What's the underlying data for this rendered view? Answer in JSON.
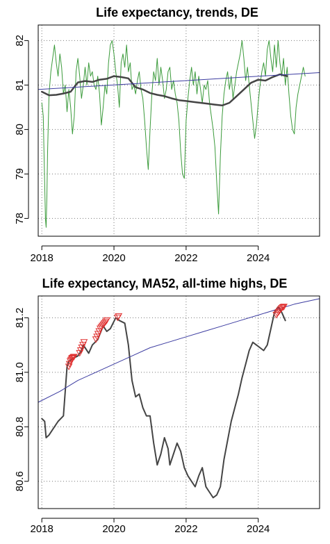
{
  "chart_data": [
    {
      "type": "line",
      "title": "Life expectancy, trends, DE",
      "xlabel": "",
      "ylabel": "",
      "xlim": [
        2017.9,
        2025.7
      ],
      "ylim": [
        77.6,
        82.35
      ],
      "xticks": [
        2018,
        2020,
        2022,
        2024
      ],
      "xtick_labels": [
        "2018",
        "2020",
        "2022",
        "2024"
      ],
      "yticks": [
        78,
        79,
        80,
        81,
        82
      ],
      "ytick_labels": [
        "78",
        "79",
        "80",
        "81",
        "82"
      ],
      "grid": true,
      "colors": {
        "weekly": "#3a9a3a",
        "ma52": "#444444",
        "trend": "#3b3ba0"
      },
      "series": [
        {
          "key": "weekly",
          "x": [
            2018.0,
            2018.04,
            2018.06,
            2018.08,
            2018.1,
            2018.12,
            2018.14,
            2018.16,
            2018.2,
            2018.25,
            2018.3,
            2018.35,
            2018.4,
            2018.45,
            2018.5,
            2018.55,
            2018.6,
            2018.65,
            2018.7,
            2018.75,
            2018.8,
            2018.85,
            2018.9,
            2018.95,
            2019.0,
            2019.05,
            2019.1,
            2019.15,
            2019.2,
            2019.25,
            2019.3,
            2019.35,
            2019.4,
            2019.45,
            2019.5,
            2019.55,
            2019.6,
            2019.65,
            2019.7,
            2019.75,
            2019.8,
            2019.85,
            2019.9,
            2019.95,
            2020.0,
            2020.05,
            2020.1,
            2020.15,
            2020.2,
            2020.25,
            2020.3,
            2020.35,
            2020.4,
            2020.45,
            2020.5,
            2020.55,
            2020.6,
            2020.65,
            2020.7,
            2020.75,
            2020.8,
            2020.85,
            2020.9,
            2020.95,
            2021.0,
            2021.05,
            2021.1,
            2021.15,
            2021.2,
            2021.25,
            2021.3,
            2021.35,
            2021.4,
            2021.45,
            2021.5,
            2021.55,
            2021.6,
            2021.65,
            2021.7,
            2021.75,
            2021.8,
            2021.85,
            2021.9,
            2021.95,
            2022.0,
            2022.05,
            2022.1,
            2022.15,
            2022.2,
            2022.25,
            2022.3,
            2022.35,
            2022.4,
            2022.45,
            2022.5,
            2022.55,
            2022.6,
            2022.65,
            2022.7,
            2022.75,
            2022.8,
            2022.85,
            2022.9,
            2022.95,
            2023.0,
            2023.05,
            2023.1,
            2023.15,
            2023.2,
            2023.25,
            2023.3,
            2023.35,
            2023.4,
            2023.45,
            2023.5,
            2023.55,
            2023.6,
            2023.65,
            2023.7,
            2023.75,
            2023.8,
            2023.85,
            2023.9,
            2023.95,
            2024.0,
            2024.05,
            2024.1,
            2024.15,
            2024.2,
            2024.25,
            2024.3,
            2024.35,
            2024.4,
            2024.45,
            2024.5,
            2024.55,
            2024.6,
            2024.65,
            2024.7,
            2024.75,
            2024.8,
            2024.85,
            2024.9,
            2024.95,
            2025.0,
            2025.05,
            2025.1,
            2025.15,
            2025.2,
            2025.25,
            2025.3
          ],
          "y": [
            80.6,
            80.3,
            79.5,
            78.8,
            78.0,
            77.8,
            78.5,
            79.5,
            80.8,
            81.3,
            81.6,
            81.9,
            81.5,
            81.2,
            81.7,
            81.4,
            80.8,
            81.0,
            80.4,
            80.9,
            80.5,
            79.9,
            80.3,
            81.3,
            81.6,
            81.2,
            80.7,
            81.0,
            81.4,
            81.0,
            81.5,
            81.2,
            81.3,
            81.0,
            80.9,
            81.2,
            80.8,
            80.1,
            80.5,
            81.0,
            80.8,
            81.5,
            81.9,
            82.0,
            81.7,
            81.3,
            81.0,
            80.5,
            81.5,
            81.7,
            81.4,
            81.9,
            81.3,
            81.5,
            80.9,
            81.0,
            80.8,
            81.1,
            81.3,
            80.9,
            80.7,
            80.2,
            79.6,
            79.1,
            80.0,
            80.8,
            81.3,
            81.1,
            81.6,
            81.0,
            81.4,
            81.1,
            80.7,
            80.9,
            81.3,
            81.4,
            80.9,
            81.1,
            80.8,
            80.6,
            80.2,
            79.5,
            79.0,
            78.9,
            80.2,
            80.7,
            81.1,
            81.4,
            81.0,
            81.3,
            80.8,
            81.2,
            80.9,
            80.6,
            81.0,
            80.9,
            81.1,
            80.6,
            80.3,
            80.0,
            79.6,
            78.8,
            78.1,
            79.4,
            80.3,
            80.8,
            81.1,
            81.3,
            80.9,
            81.2,
            80.7,
            81.0,
            81.3,
            81.5,
            81.7,
            82.0,
            81.6,
            81.1,
            81.4,
            81.0,
            80.6,
            80.2,
            79.8,
            80.1,
            80.6,
            81.0,
            81.3,
            81.5,
            81.2,
            81.8,
            82.0,
            81.6,
            81.3,
            81.9,
            81.4,
            82.0,
            81.5,
            81.2,
            81.6,
            81.0,
            81.4,
            80.8,
            80.3,
            80.0,
            79.9,
            80.5,
            80.8,
            81.0,
            81.2,
            81.4,
            81.2
          ]
        },
        {
          "key": "ma52",
          "x": [
            2018.0,
            2018.2,
            2018.4,
            2018.6,
            2018.8,
            2019.0,
            2019.2,
            2019.4,
            2019.6,
            2019.8,
            2020.0,
            2020.2,
            2020.4,
            2020.6,
            2020.8,
            2021.0,
            2021.2,
            2021.4,
            2021.6,
            2021.8,
            2022.0,
            2022.2,
            2022.4,
            2022.6,
            2022.8,
            2023.0,
            2023.2,
            2023.4,
            2023.6,
            2023.8,
            2024.0,
            2024.2,
            2024.4,
            2024.6,
            2024.8
          ],
          "y": [
            80.85,
            80.77,
            80.78,
            80.81,
            80.85,
            81.06,
            81.09,
            81.07,
            81.12,
            81.14,
            81.2,
            81.18,
            81.15,
            80.95,
            80.9,
            80.82,
            80.78,
            80.75,
            80.7,
            80.66,
            80.64,
            80.62,
            80.6,
            80.58,
            80.56,
            80.54,
            80.6,
            80.75,
            80.9,
            81.05,
            81.12,
            81.1,
            81.18,
            81.24,
            81.2
          ]
        },
        {
          "key": "trend",
          "x": [
            2017.9,
            2025.7
          ],
          "y": [
            80.9,
            81.28
          ]
        }
      ]
    },
    {
      "type": "line",
      "title": "Life expectancy, MA52, all-time highs, DE",
      "xlabel": "",
      "ylabel": "",
      "xlim": [
        2017.9,
        2025.7
      ],
      "ylim": [
        80.5,
        81.28
      ],
      "xticks": [
        2018,
        2020,
        2022,
        2024
      ],
      "xtick_labels": [
        "2018",
        "2020",
        "2022",
        "2024"
      ],
      "yticks": [
        80.6,
        80.8,
        81.0,
        81.2
      ],
      "ytick_labels": [
        "80.6",
        "80.8",
        "81.0",
        "81.2"
      ],
      "grid": true,
      "colors": {
        "ma52": "#444444",
        "trend": "#3b3ba0",
        "highs": "#e03030"
      },
      "series": [
        {
          "key": "ma52",
          "x": [
            2018.0,
            2018.08,
            2018.12,
            2018.2,
            2018.3,
            2018.45,
            2018.6,
            2018.7,
            2018.75,
            2018.85,
            2019.0,
            2019.1,
            2019.15,
            2019.3,
            2019.4,
            2019.55,
            2019.7,
            2019.8,
            2019.9,
            2020.05,
            2020.15,
            2020.3,
            2020.4,
            2020.5,
            2020.6,
            2020.7,
            2020.8,
            2020.9,
            2021.0,
            2021.1,
            2021.2,
            2021.3,
            2021.4,
            2021.5,
            2021.55,
            2021.65,
            2021.75,
            2021.85,
            2021.95,
            2022.05,
            2022.15,
            2022.25,
            2022.35,
            2022.45,
            2022.55,
            2022.65,
            2022.75,
            2022.85,
            2022.95,
            2023.05,
            2023.15,
            2023.25,
            2023.35,
            2023.45,
            2023.55,
            2023.65,
            2023.75,
            2023.85,
            2023.95,
            2024.05,
            2024.15,
            2024.25,
            2024.35,
            2024.45,
            2024.55,
            2024.65,
            2024.75
          ],
          "y": [
            80.83,
            80.82,
            80.76,
            80.77,
            80.79,
            80.82,
            80.84,
            81.02,
            81.04,
            81.05,
            81.06,
            81.08,
            81.1,
            81.07,
            81.1,
            81.12,
            81.17,
            81.15,
            81.16,
            81.2,
            81.19,
            81.18,
            81.1,
            80.97,
            80.91,
            80.92,
            80.87,
            80.84,
            80.84,
            80.74,
            80.66,
            80.7,
            80.76,
            80.72,
            80.66,
            80.7,
            80.74,
            80.71,
            80.65,
            80.62,
            80.6,
            80.58,
            80.62,
            80.65,
            80.58,
            80.56,
            80.54,
            80.55,
            80.58,
            80.68,
            80.75,
            80.82,
            80.87,
            80.92,
            80.98,
            81.03,
            81.08,
            81.11,
            81.1,
            81.09,
            81.08,
            81.1,
            81.16,
            81.22,
            81.24,
            81.22,
            81.19
          ]
        },
        {
          "key": "trend",
          "x": [
            2017.9,
            2018.5,
            2019.0,
            2019.5,
            2020.0,
            2020.5,
            2021.0,
            2021.5,
            2022.0,
            2022.5,
            2023.0,
            2023.5,
            2024.0,
            2024.5,
            2025.0,
            2025.7
          ],
          "y": [
            80.89,
            80.93,
            80.97,
            81.0,
            81.03,
            81.06,
            81.09,
            81.11,
            81.13,
            81.15,
            81.17,
            81.19,
            81.21,
            81.23,
            81.25,
            81.27
          ]
        },
        {
          "key": "highs",
          "x": [
            2018.75,
            2018.77,
            2018.79,
            2018.81,
            2018.83,
            2018.85,
            2018.87,
            2018.89,
            2019.05,
            2019.08,
            2019.11,
            2019.14,
            2019.17,
            2019.5,
            2019.53,
            2019.56,
            2019.59,
            2019.62,
            2019.65,
            2019.68,
            2019.71,
            2019.74,
            2019.77,
            2019.8,
            2020.1,
            2020.13,
            2024.5,
            2024.53,
            2024.56,
            2024.59,
            2024.62,
            2024.65,
            2024.68,
            2024.71
          ],
          "y": [
            81.02,
            81.03,
            81.04,
            81.045,
            81.05,
            81.052,
            81.054,
            81.056,
            81.07,
            81.08,
            81.09,
            81.1,
            81.11,
            81.12,
            81.13,
            81.14,
            81.15,
            81.16,
            81.165,
            81.17,
            81.175,
            81.18,
            81.185,
            81.19,
            81.2,
            81.205,
            81.21,
            81.215,
            81.22,
            81.225,
            81.23,
            81.235,
            81.238,
            81.24
          ]
        }
      ]
    }
  ]
}
